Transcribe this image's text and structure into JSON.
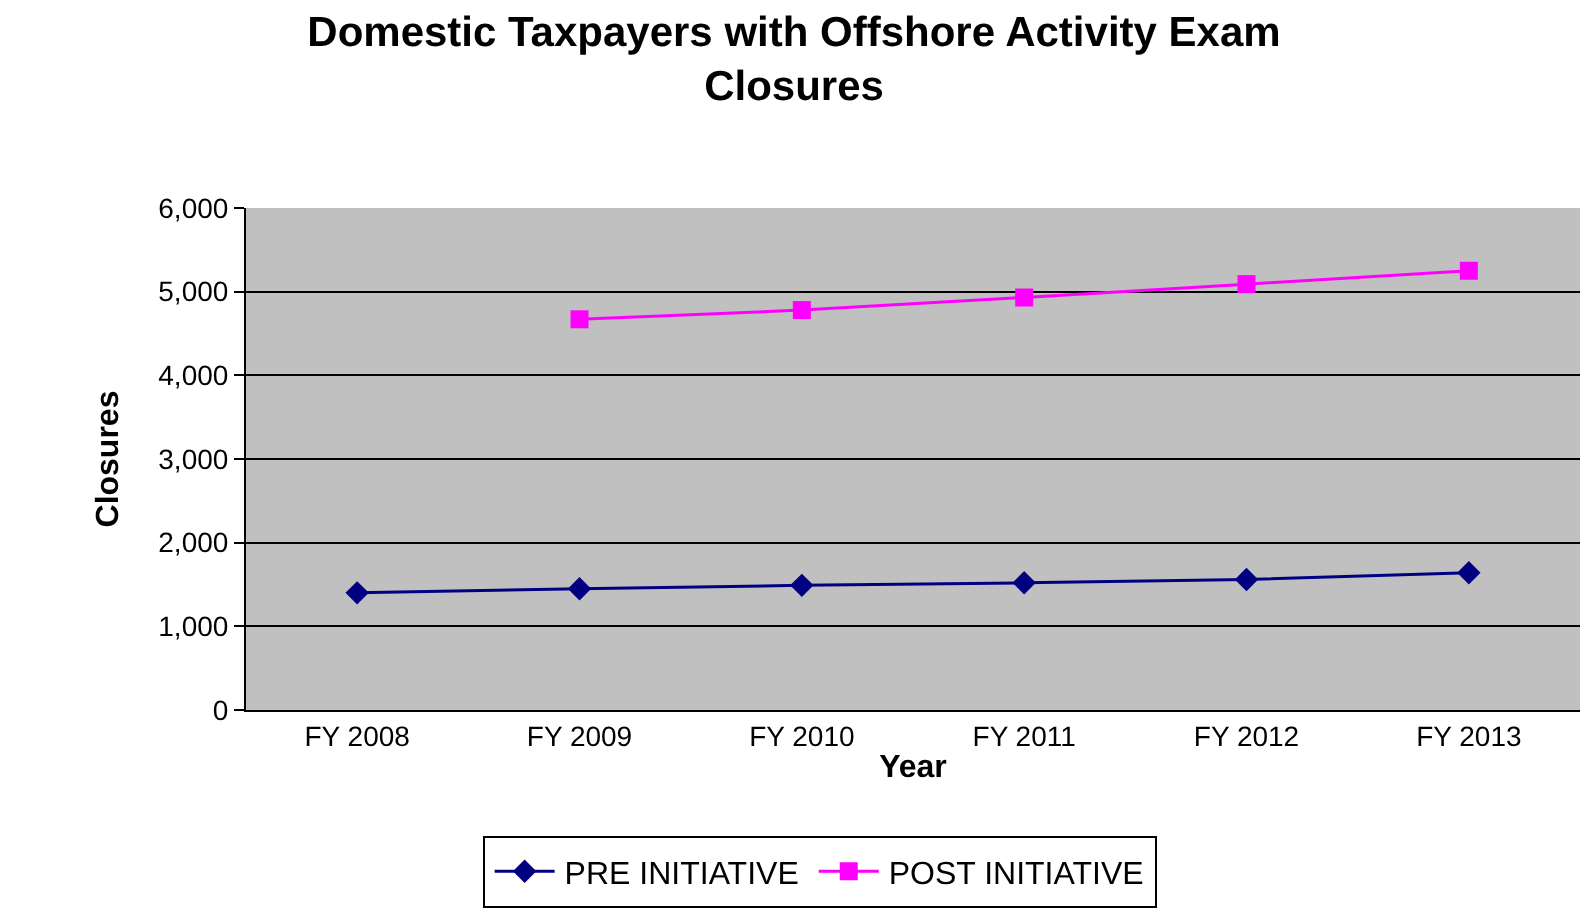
{
  "chart_data": {
    "type": "line",
    "title": "Domestic Taxpayers with Offshore Activity Exam Closures",
    "xlabel": "Year",
    "ylabel": "Closures",
    "categories": [
      "FY 2008",
      "FY 2009",
      "FY 2010",
      "FY 2011",
      "FY 2012",
      "FY 2013"
    ],
    "series": [
      {
        "name": "PRE INITIATIVE",
        "color": "#000080",
        "marker": "diamond",
        "values": [
          1400,
          1450,
          1490,
          1520,
          1560,
          1640
        ]
      },
      {
        "name": "POST INITIATIVE",
        "color": "#ff00ff",
        "marker": "square",
        "values": [
          null,
          4670,
          4780,
          4930,
          5090,
          5250
        ]
      }
    ],
    "ylim": [
      0,
      6000
    ],
    "yticks": [
      {
        "value": 0,
        "label": "0"
      },
      {
        "value": 1000,
        "label": "1,000"
      },
      {
        "value": 2000,
        "label": "2,000"
      },
      {
        "value": 3000,
        "label": "3,000"
      },
      {
        "value": 4000,
        "label": "4,000"
      },
      {
        "value": 5000,
        "label": "5,000"
      },
      {
        "value": 6000,
        "label": "6,000"
      }
    ],
    "grid": "y",
    "legend": "bottom",
    "line_style": "solid"
  }
}
